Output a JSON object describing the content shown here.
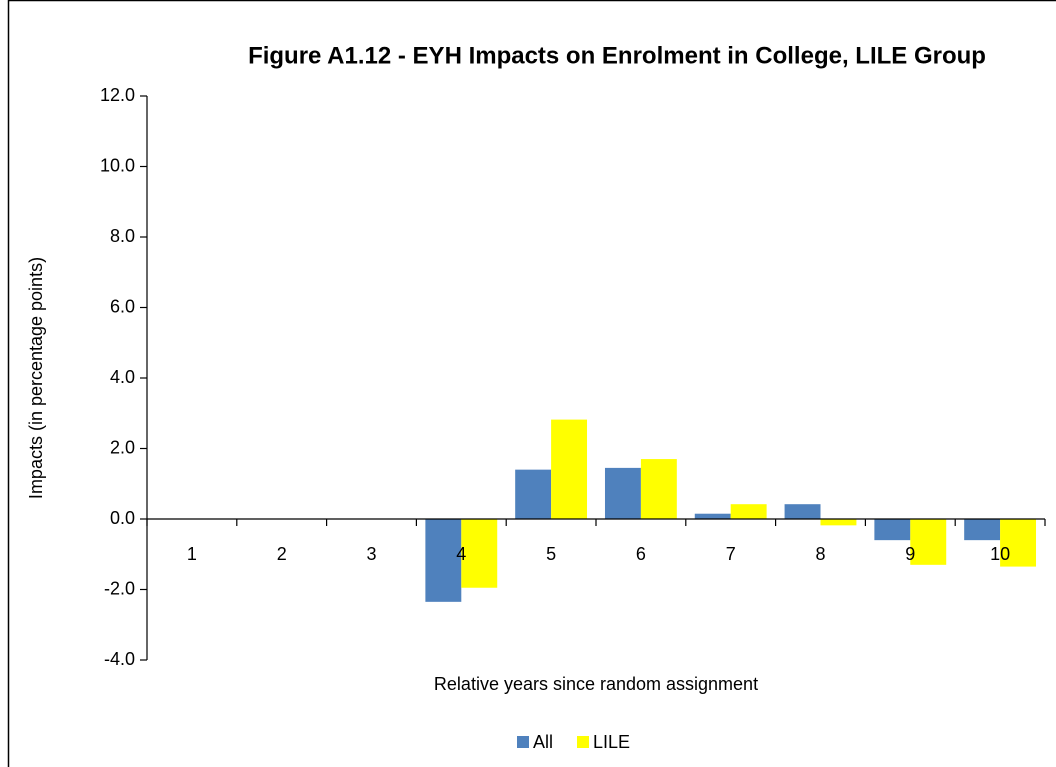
{
  "chart_data": {
    "type": "bar",
    "title": "Figure A1.12 - EYH Impacts on Enrolment in College, LILE Group",
    "x_label": "Relative years since random assignment",
    "y_label": "Impacts (in percentage points)",
    "categories": [
      "1",
      "2",
      "3",
      "4",
      "5",
      "6",
      "7",
      "8",
      "9",
      "10"
    ],
    "series": [
      {
        "name": "All",
        "color": "#4f81bd",
        "values": [
          null,
          null,
          null,
          -2.35,
          1.4,
          1.45,
          0.15,
          0.42,
          -0.6,
          -0.6
        ]
      },
      {
        "name": "LILE",
        "color": "#ffff00",
        "values": [
          null,
          null,
          null,
          -1.95,
          2.82,
          1.7,
          0.42,
          -0.18,
          -1.3,
          -1.35
        ]
      }
    ],
    "ylim": [
      -4,
      12
    ],
    "yticks": [
      {
        "value": -4,
        "label": "-4.0"
      },
      {
        "value": -2,
        "label": "-2.0"
      },
      {
        "value": 0,
        "label": "0.0"
      },
      {
        "value": 2,
        "label": "2.0"
      },
      {
        "value": 4,
        "label": "4.0"
      },
      {
        "value": 6,
        "label": "6.0"
      },
      {
        "value": 8,
        "label": "8.0"
      },
      {
        "value": 10,
        "label": "10.0"
      },
      {
        "value": 12,
        "label": "12.0"
      }
    ],
    "grid": false,
    "legend": "bottom"
  }
}
